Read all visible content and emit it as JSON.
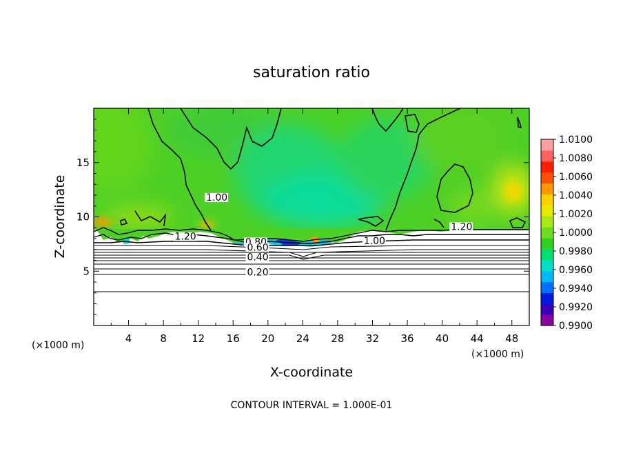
{
  "chart_data": {
    "type": "heatmap",
    "title": "saturation ratio",
    "xlabel": "X-coordinate",
    "ylabel": "Z-coordinate",
    "x_unit": "(×1000 m)",
    "x_unit_left": "(×1000 m)",
    "footer": "CONTOUR INTERVAL = 1.000E-01",
    "xlim": [
      0,
      50
    ],
    "ylim": [
      0,
      20
    ],
    "xticks": [
      "4",
      "8",
      "12",
      "16",
      "20",
      "24",
      "28",
      "32",
      "36",
      "40",
      "44",
      "48"
    ],
    "yticks": [
      "5",
      "10",
      "15"
    ],
    "colorbar": {
      "range": [
        0.99,
        1.01
      ],
      "labels": [
        "1.0100",
        "1.0080",
        "1.0060",
        "1.0040",
        "1.0020",
        "1.0000",
        "0.9980",
        "0.9960",
        "0.9940",
        "0.9920",
        "0.9900"
      ],
      "colors": [
        "#8b00a0",
        "#3a00b8",
        "#0018e0",
        "#0070ff",
        "#00b8ff",
        "#00e0c8",
        "#00e070",
        "#30d020",
        "#70dc20",
        "#a8e818",
        "#e8e800",
        "#ffd000",
        "#ff9800",
        "#ff5000",
        "#ff2000",
        "#ff6060",
        "#ffa0a0"
      ]
    },
    "contour_labels": [
      {
        "text": "1.00",
        "x": 12.9,
        "z": 11.5
      },
      {
        "text": "1.20",
        "x": 9.3,
        "z": 7.9
      },
      {
        "text": "1.20",
        "x": 41.0,
        "z": 8.8
      },
      {
        "text": "1.00",
        "x": 31.0,
        "z": 7.5
      },
      {
        "text": "0.80",
        "x": 17.4,
        "z": 7.4
      },
      {
        "text": "0.60",
        "x": 17.6,
        "z": 6.9
      },
      {
        "text": "0.40",
        "x": 17.6,
        "z": 6.0
      },
      {
        "text": "0.20",
        "x": 17.6,
        "z": 4.6
      }
    ],
    "colors": {
      "background": "#48d028",
      "accent_cyan": "#00e0b0",
      "accent_blue": "#0020d0",
      "accent_orange": "#ff9000"
    }
  }
}
